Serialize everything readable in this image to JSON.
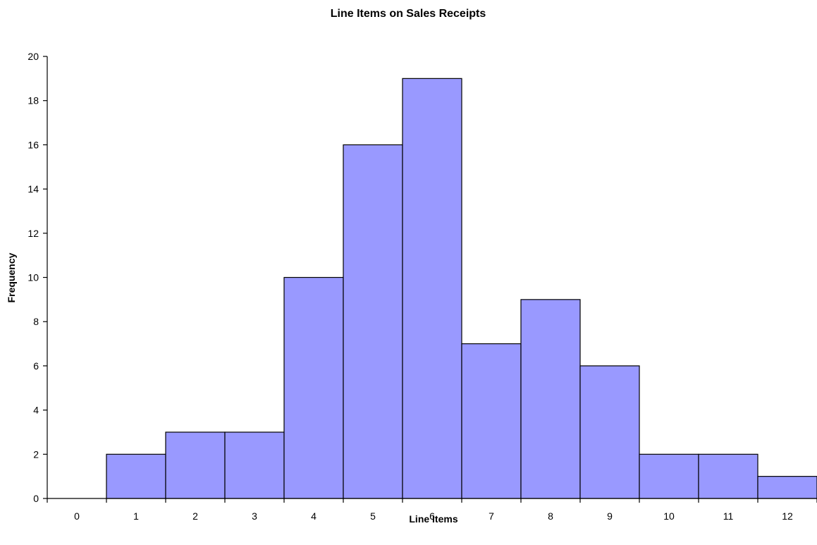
{
  "chart_data": {
    "type": "bar",
    "title": "Line Items on Sales Receipts",
    "xlabel": "Line Items",
    "ylabel": "Frequency",
    "categories": [
      "0",
      "1",
      "2",
      "3",
      "4",
      "5",
      "6",
      "7",
      "8",
      "9",
      "10",
      "11",
      "12"
    ],
    "values": [
      0,
      2,
      3,
      3,
      10,
      16,
      19,
      7,
      9,
      6,
      2,
      2,
      1
    ],
    "ylim": [
      0,
      20
    ],
    "yticks": [
      0,
      2,
      4,
      6,
      8,
      10,
      12,
      14,
      16,
      18,
      20
    ],
    "grid": false,
    "legend": "none",
    "bar_color": "#9999FF",
    "edge_color": "#000000"
  }
}
